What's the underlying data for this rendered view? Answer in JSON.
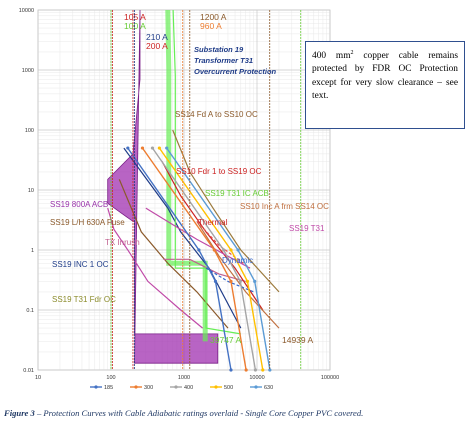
{
  "chart_data": {
    "type": "line",
    "xscale": "log",
    "yscale": "log",
    "xlim": [
      10,
      100000
    ],
    "ylim": [
      0.01,
      10000
    ],
    "x_ticks": [
      "10",
      "100",
      "1000",
      "10000",
      "100000"
    ],
    "y_ticks": [
      "0.01",
      "0.1",
      "1",
      "10",
      "100",
      "1000",
      "10000"
    ],
    "grid": "major and minor",
    "legend_position": "bottom",
    "legend": [
      {
        "label": "185",
        "color": "#4472c4"
      },
      {
        "label": "300",
        "color": "#ed7d31"
      },
      {
        "label": "400",
        "color": "#a5a5a5"
      },
      {
        "label": "500",
        "color": "#ffc000"
      },
      {
        "label": "630",
        "color": "#5b9bd5"
      }
    ],
    "series": [
      {
        "name": "185",
        "color": "#4472c4",
        "x": [
          170,
          1600,
          2700,
          4400
        ],
        "y": [
          50,
          1,
          0.3,
          0.01
        ]
      },
      {
        "name": "300",
        "color": "#ed7d31",
        "x": [
          270,
          2600,
          4400,
          7100
        ],
        "y": [
          50,
          1,
          0.3,
          0.01
        ]
      },
      {
        "name": "400",
        "color": "#a5a5a5",
        "x": [
          370,
          3500,
          5900,
          9500
        ],
        "y": [
          50,
          1,
          0.3,
          0.01
        ]
      },
      {
        "name": "500",
        "color": "#ffc000",
        "x": [
          460,
          4400,
          7400,
          12000
        ],
        "y": [
          50,
          1,
          0.3,
          0.01
        ]
      },
      {
        "name": "630",
        "color": "#5b9bd5",
        "x": [
          580,
          5500,
          9300,
          15000
        ],
        "y": [
          50,
          1,
          0.3,
          0.01
        ]
      }
    ],
    "curves": [
      {
        "id": "SS19 800A ACB",
        "color": "#9933aa",
        "x": [
          250,
          250,
          200,
          90,
          90,
          200,
          210,
          210,
          2900,
          2900,
          210
        ],
        "y": [
          10000,
          700,
          40,
          15,
          6,
          3,
          3,
          0.04,
          0.04,
          0.013,
          0.013
        ]
      },
      {
        "name": "SS19 800A ACB",
        "color": "#c04aa8",
        "x": [
          90,
          110,
          180,
          320,
          900,
          1800
        ],
        "y": [
          5,
          2.2,
          0.9,
          0.3,
          0.1,
          0.05
        ]
      },
      {
        "name": "SS19 L/H 630A Fuse",
        "color": "#8b5a2b",
        "x": [
          130,
          260,
          600,
          1500,
          4000
        ],
        "y": [
          15,
          2,
          0.6,
          0.2,
          0.05
        ]
      },
      {
        "name": "TX Inrush",
        "color": "#c06090",
        "x": [
          520,
          1200,
          3000,
          7000
        ],
        "y": [
          0.7,
          0.7,
          0.4,
          0.3
        ]
      },
      {
        "name": "SS19 INC 1 OC",
        "color": "#1f3c88",
        "x": [
          150,
          260,
          600,
          900,
          2200,
          6000
        ],
        "y": [
          50,
          20,
          5,
          2,
          0.5,
          0.05
        ]
      },
      {
        "name": "SS19 T31 IC ACB",
        "color": "#66cc33",
        "x": [
          600,
          620,
          620,
          1950,
          1950
        ],
        "y": [
          10000,
          1000,
          0.6,
          0.6,
          0.03
        ]
      },
      {
        "name": "SS19 T31 Fdr OC",
        "color": "#66ee55",
        "x": [
          710,
          760,
          760,
          2000,
          2000,
          6000
        ],
        "y": [
          10000,
          800,
          0.5,
          0.5,
          0.05,
          0.04
        ]
      },
      {
        "name": "SS14 Fd A to SS10 OC",
        "color": "#9c7a3c",
        "x": [
          700,
          1200,
          2500,
          6000,
          20000
        ],
        "y": [
          100,
          20,
          5,
          1,
          0.2
        ]
      },
      {
        "name": "SS10 Fdr 1 to SS19 OC",
        "color": "#cc2222",
        "x": [
          500,
          900,
          2000,
          5000,
          12000
        ],
        "y": [
          30,
          8,
          2,
          0.5,
          0.1
        ]
      },
      {
        "name": "SS10 Inc A frm SS14 OC",
        "color": "#c07040",
        "x": [
          1500,
          3000,
          7000,
          20000
        ],
        "y": [
          3,
          0.8,
          0.2,
          0.05
        ]
      },
      {
        "name": "Thermal",
        "color": "#e05050",
        "x": [
          1500,
          3000,
          8000
        ],
        "y": [
          3,
          1.2,
          0.5
        ]
      },
      {
        "name": "Dynamic",
        "color": "#3366cc",
        "x": [
          2000,
          4000,
          9000
        ],
        "y": [
          0.5,
          0.3,
          0.2
        ]
      },
      {
        "name": "SS19 T31",
        "color": "#c04aa8",
        "x": [
          300,
          1500,
          8000
        ],
        "y": [
          5,
          1.5,
          0.5
        ]
      }
    ],
    "markers": [
      {
        "label": "105 A",
        "x": 105,
        "color": "#cc2222"
      },
      {
        "label": "100 A",
        "x": 100,
        "color": "#66cc33"
      },
      {
        "label": "210 A",
        "x": 210,
        "color": "#1f3c88"
      },
      {
        "label": "200 A",
        "x": 200,
        "color": "#cc2222"
      },
      {
        "label": "1200 A",
        "x": 1200,
        "color": "#8b5a2b"
      },
      {
        "label": "960 A",
        "x": 960,
        "color": "#ed7d31"
      },
      {
        "label": "39747 A",
        "x": 39747,
        "color": "#66cc33"
      },
      {
        "label": "14939 A",
        "x": 14939,
        "color": "#8b5a2b"
      }
    ],
    "annotations": [
      {
        "text": "Substation 19",
        "color": "#1f3c88"
      },
      {
        "text": "Transformer T31",
        "color": "#1f3c88"
      },
      {
        "text": "Overcurrent Protection",
        "color": "#1f3c88"
      },
      {
        "text": "SS14 Fd A to SS10 OC",
        "color": "#8b5a2b"
      },
      {
        "text": "SS10 Fdr 1 to SS19 OC",
        "color": "#cc2222"
      },
      {
        "text": "SS19 T31 IC ACB",
        "color": "#66cc33"
      },
      {
        "text": "SS10 Inc A frm SS14 OC",
        "color": "#c07040"
      },
      {
        "text": "SS19 800A ACB",
        "color": "#9933aa"
      },
      {
        "text": "Thermal",
        "color": "#cc2222"
      },
      {
        "text": "SS19 T31",
        "color": "#c04aa8"
      },
      {
        "text": "SS19 L/H 630A Fuse",
        "color": "#8b5a2b"
      },
      {
        "text": "TX Inrush",
        "color": "#c06090"
      },
      {
        "text": "SS19 INC 1 OC",
        "color": "#1f3c88"
      },
      {
        "text": "Dynamic",
        "color": "#3366cc"
      },
      {
        "text": "SS19 T31 Fdr OC",
        "color": "#8b8b2b"
      }
    ]
  },
  "callout": {
    "line1_prefix": "400 mm",
    "line1_sup": "2",
    "line1_suffix": " copper cable remains protected by FDR OC Protection except for very slow clearance – see text."
  },
  "caption": {
    "label": "Figure 3",
    "text": " – Protection Curves with Cable Adiabatic ratings overlaid - Single Core Copper PVC covered."
  }
}
